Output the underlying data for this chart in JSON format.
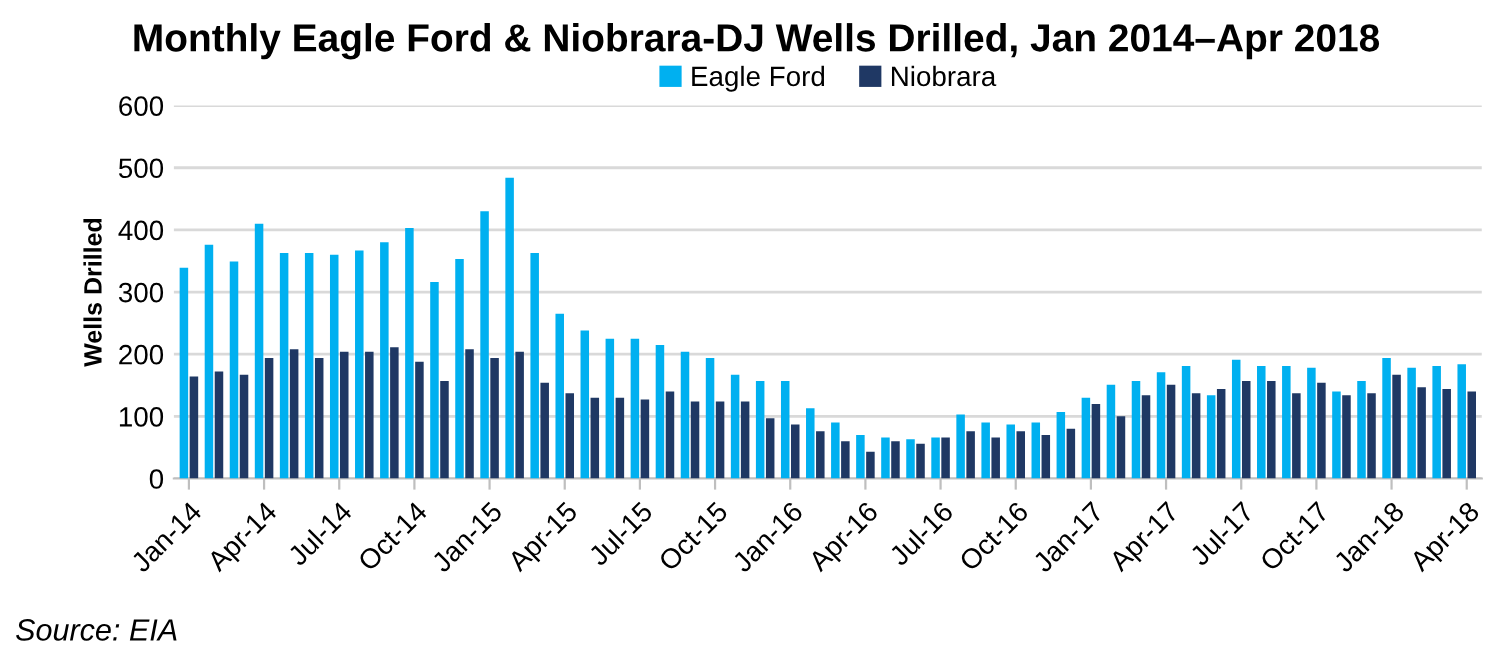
{
  "chart_data": {
    "type": "bar",
    "title": "Monthly Eagle Ford & Niobrara-DJ Wells Drilled, Jan 2014–Apr 2018",
    "ylabel": "Wells Drilled",
    "categories": [
      "Jan-14",
      null,
      null,
      "Apr-14",
      null,
      null,
      "Jul-14",
      null,
      null,
      "Oct-14",
      null,
      null,
      "Jan-15",
      null,
      null,
      "Apr-15",
      null,
      null,
      "Jul-15",
      null,
      null,
      "Oct-15",
      null,
      null,
      "Jan-16",
      null,
      null,
      "Apr-16",
      null,
      null,
      "Jul-16",
      null,
      null,
      "Oct-16",
      null,
      null,
      "Jan-17",
      null,
      null,
      "Apr-17",
      null,
      null,
      "Jul-17",
      null,
      null,
      "Oct-17",
      null,
      null,
      "Jan-18",
      null,
      null,
      "Apr-18"
    ],
    "series": [
      {
        "name": "Eagle Ford",
        "color": "#00b0f0",
        "values": [
          339,
          376,
          349,
          410,
          363,
          363,
          360,
          367,
          380,
          403,
          316,
          353,
          430,
          484,
          363,
          265,
          238,
          225,
          225,
          215,
          204,
          194,
          167,
          157,
          157,
          113,
          90,
          70,
          66,
          63,
          66,
          103,
          90,
          87,
          90,
          107,
          130,
          151,
          157,
          171,
          181,
          134,
          191,
          181,
          181,
          178,
          140,
          157,
          194,
          178,
          181,
          184
        ]
      },
      {
        "name": "Niobrara",
        "color": "#1f3864",
        "values": [
          164,
          172,
          167,
          194,
          208,
          194,
          204,
          204,
          211,
          188,
          157,
          208,
          194,
          204,
          154,
          137,
          130,
          130,
          127,
          140,
          124,
          124,
          124,
          97,
          87,
          76,
          60,
          43,
          60,
          56,
          66,
          76,
          66,
          76,
          70,
          80,
          120,
          100,
          134,
          151,
          137,
          144,
          157,
          157,
          137,
          154,
          134,
          137,
          167,
          147,
          144,
          140
        ]
      }
    ],
    "ylim": [
      0,
      600
    ],
    "yticks": [
      0,
      100,
      200,
      300,
      400,
      500,
      600
    ],
    "grid": "y",
    "legend": "top",
    "annotations": [
      "Source: EIA"
    ]
  }
}
